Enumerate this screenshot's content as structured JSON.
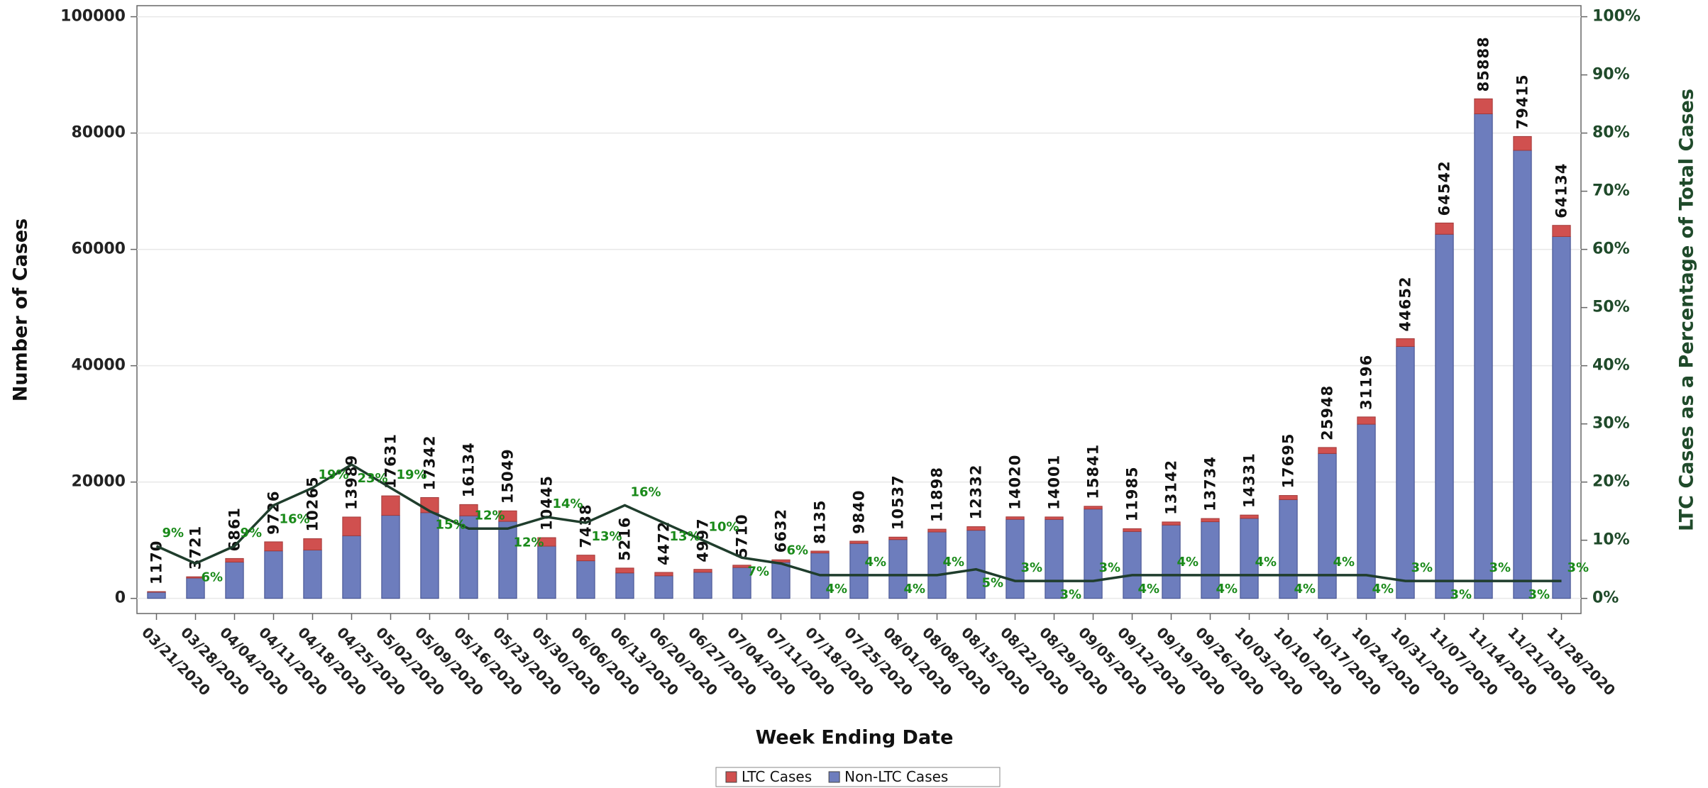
{
  "chart_data": {
    "type": "bar",
    "stacked": true,
    "x_label": "Week Ending Date",
    "y_label": "Number of Cases",
    "y2_label": "LTC Cases as a Percentage of Total Cases",
    "categories": [
      "03/21/2020",
      "03/28/2020",
      "04/04/2020",
      "04/11/2020",
      "04/18/2020",
      "04/25/2020",
      "05/02/2020",
      "05/09/2020",
      "05/16/2020",
      "05/23/2020",
      "05/30/2020",
      "06/06/2020",
      "06/13/2020",
      "06/20/2020",
      "06/27/2020",
      "07/04/2020",
      "07/11/2020",
      "07/18/2020",
      "07/25/2020",
      "08/01/2020",
      "08/08/2020",
      "08/15/2020",
      "08/22/2020",
      "08/29/2020",
      "09/05/2020",
      "09/12/2020",
      "09/19/2020",
      "09/26/2020",
      "10/03/2020",
      "10/10/2020",
      "10/17/2020",
      "10/24/2020",
      "10/31/2020",
      "11/07/2020",
      "11/14/2020",
      "11/21/2020",
      "11/28/2020"
    ],
    "series": [
      {
        "name": "Non-LTC Cases",
        "color": "#6d7dbd",
        "values": [
          1065,
          3498,
          6244,
          8170,
          8315,
          10772,
          14281,
          14741,
          14198,
          13243,
          8983,
          6471,
          4381,
          3891,
          4497,
          5310,
          6234,
          7810,
          9446,
          10116,
          11422,
          11715,
          13599,
          13581,
          15366,
          11506,
          12616,
          13185,
          13758,
          16987,
          24910,
          29948,
          43312,
          62606,
          83311,
          77033,
          62210
        ]
      },
      {
        "name": "LTC Cases",
        "color": "#d0504f",
        "values": [
          105,
          223,
          617,
          1556,
          1950,
          3217,
          3350,
          2601,
          1936,
          1806,
          1462,
          967,
          835,
          581,
          500,
          400,
          398,
          325,
          394,
          421,
          476,
          617,
          421,
          420,
          475,
          479,
          526,
          549,
          573,
          708,
          1038,
          1248,
          1340,
          1936,
          2577,
          2382,
          1924
        ]
      }
    ],
    "totals": [
      "1170",
      "3721",
      "6861",
      "9726",
      "10265",
      "13989",
      "17631",
      "17342",
      "16134",
      "15049",
      "10445",
      "7438",
      "5216",
      "4472",
      "4997",
      "5710",
      "6632",
      "8135",
      "9840",
      "10537",
      "11898",
      "12332",
      "14020",
      "14001",
      "15841",
      "11985",
      "13142",
      "13734",
      "14331",
      "17695",
      "25948",
      "31196",
      "44652",
      "64542",
      "85888",
      "79415",
      "64134"
    ],
    "line": {
      "axis": "y2",
      "color": "#1f3d2c",
      "values": [
        9,
        6,
        9,
        16,
        19,
        23,
        19,
        15,
        12,
        12,
        14,
        13,
        16,
        13,
        10,
        7,
        6,
        4,
        4,
        4,
        4,
        5,
        3,
        3,
        3,
        4,
        4,
        4,
        4,
        4,
        4,
        4,
        3,
        3,
        3,
        3,
        3
      ],
      "value_labels": [
        "9%",
        "6%",
        "9%",
        "16%",
        "19%",
        "23%",
        "19%",
        "15%",
        "12%",
        "12%",
        "14%",
        "13%",
        "16%",
        "13%",
        "10%",
        "7%",
        "6%",
        "4%",
        "4%",
        "4%",
        "4%",
        "5%",
        "3%",
        "3%",
        "3%",
        "4%",
        "4%",
        "4%",
        "4%",
        "4%",
        "4%",
        "4%",
        "3%",
        "3%",
        "3%",
        "3%",
        "3%"
      ]
    },
    "ylim": [
      -2600,
      101900
    ],
    "yticks": [
      0,
      20000,
      40000,
      60000,
      80000,
      100000
    ],
    "y2lim": [
      -2.6,
      101.9
    ],
    "y2ticks": [
      {
        "value": 0,
        "label": "0%"
      },
      {
        "value": 10,
        "label": "10%"
      },
      {
        "value": 20,
        "label": "20%"
      },
      {
        "value": 30,
        "label": "30%"
      },
      {
        "value": 40,
        "label": "40%"
      },
      {
        "value": 50,
        "label": "50%"
      },
      {
        "value": 60,
        "label": "60%"
      },
      {
        "value": 70,
        "label": "70%"
      },
      {
        "value": 80,
        "label": "80%"
      },
      {
        "value": 90,
        "label": "90%"
      },
      {
        "value": 100,
        "label": "100%"
      }
    ],
    "grid": true,
    "legend": "bottom"
  }
}
